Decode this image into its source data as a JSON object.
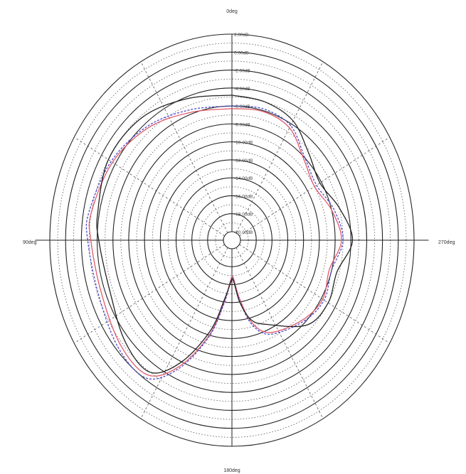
{
  "chart_data": {
    "type": "polar",
    "title": "",
    "direction_labels": {
      "top": "0deg",
      "left": "90deg",
      "bottom": "180deg",
      "right": "270deg"
    },
    "angle_direction": "counter-clockwise",
    "radial_axis": {
      "unit": "dB",
      "ticks": [
        "2.00dB",
        "0.00dB",
        "-2.00dB",
        "-4.00dB",
        "-6.00dB",
        "-8.00dB",
        "-10.00dB",
        "-12.00dB",
        "-14.00dB",
        "-16.00dB",
        "-18.00dB",
        "-20.00dB"
      ],
      "tick_values": [
        2,
        0,
        -2,
        -4,
        -6,
        -8,
        -10,
        -12,
        -14,
        -16,
        -18,
        -20
      ],
      "range": [
        -20,
        2
      ]
    },
    "grid": true,
    "series": [
      {
        "color": "#e05a6a",
        "style": "solid",
        "points": [
          [
            0,
            -6.3
          ],
          [
            20,
            -5.8
          ],
          [
            40,
            -4.6
          ],
          [
            60,
            -3.6
          ],
          [
            80,
            -3.0
          ],
          [
            90,
            -3.2
          ],
          [
            110,
            -3.5
          ],
          [
            130,
            -2.7
          ],
          [
            145,
            -2.6
          ],
          [
            155,
            -5.5
          ],
          [
            165,
            -10.0
          ],
          [
            172,
            -14.0
          ],
          [
            178,
            -16.5
          ],
          [
            182,
            -16.8
          ],
          [
            188,
            -14.5
          ],
          [
            195,
            -11.5
          ],
          [
            205,
            -9.6
          ],
          [
            225,
            -8.4
          ],
          [
            240,
            -7.8
          ],
          [
            255,
            -8.3
          ],
          [
            270,
            -7.2
          ],
          [
            285,
            -8.0
          ],
          [
            300,
            -9.0
          ],
          [
            315,
            -8.2
          ],
          [
            330,
            -6.5
          ],
          [
            345,
            -6.1
          ],
          [
            360,
            -6.3
          ]
        ]
      },
      {
        "color": "#4a4ad0",
        "style": "dashed",
        "points": [
          [
            0,
            -6.0
          ],
          [
            20,
            -5.5
          ],
          [
            40,
            -4.4
          ],
          [
            60,
            -3.4
          ],
          [
            80,
            -2.7
          ],
          [
            90,
            -2.8
          ],
          [
            110,
            -3.1
          ],
          [
            130,
            -2.3
          ],
          [
            145,
            -2.2
          ],
          [
            155,
            -5.2
          ],
          [
            165,
            -9.8
          ],
          [
            172,
            -13.8
          ],
          [
            178,
            -16.3
          ],
          [
            182,
            -16.6
          ],
          [
            188,
            -14.2
          ],
          [
            195,
            -11.2
          ],
          [
            205,
            -9.4
          ],
          [
            225,
            -8.2
          ],
          [
            240,
            -7.6
          ],
          [
            255,
            -8.0
          ],
          [
            270,
            -7.0
          ],
          [
            285,
            -7.7
          ],
          [
            300,
            -8.7
          ],
          [
            315,
            -8.0
          ],
          [
            330,
            -6.2
          ],
          [
            345,
            -5.8
          ],
          [
            360,
            -6.0
          ]
        ]
      },
      {
        "color": "#222222",
        "style": "solid",
        "points": [
          [
            0,
            -4.8
          ],
          [
            20,
            -4.2
          ],
          [
            40,
            -3.2
          ],
          [
            60,
            -3.0
          ],
          [
            80,
            -3.8
          ],
          [
            90,
            -4.2
          ],
          [
            110,
            -4.6
          ],
          [
            130,
            -3.4
          ],
          [
            145,
            -3.0
          ],
          [
            155,
            -6.0
          ],
          [
            165,
            -10.5
          ],
          [
            172,
            -14.3
          ],
          [
            178,
            -16.2
          ],
          [
            182,
            -16.5
          ],
          [
            188,
            -14.0
          ],
          [
            195,
            -11.8
          ],
          [
            205,
            -10.6
          ],
          [
            225,
            -7.6
          ],
          [
            240,
            -7.0
          ],
          [
            255,
            -7.3
          ],
          [
            270,
            -5.8
          ],
          [
            285,
            -7.0
          ],
          [
            300,
            -8.2
          ],
          [
            315,
            -7.3
          ],
          [
            330,
            -5.6
          ],
          [
            345,
            -5.0
          ],
          [
            360,
            -4.8
          ]
        ]
      }
    ]
  }
}
